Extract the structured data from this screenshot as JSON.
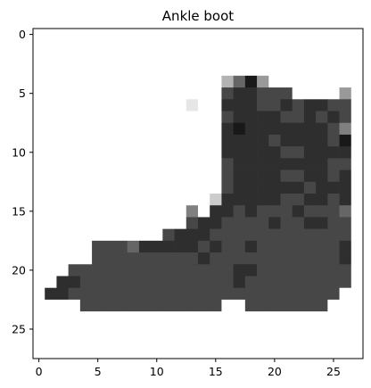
{
  "chart_data": {
    "type": "heatmap",
    "title": "Ankle boot",
    "xlabel": "",
    "ylabel": "",
    "colormap": "gray_r",
    "xlim": [
      -0.5,
      27.5
    ],
    "ylim": [
      27.5,
      -0.5
    ],
    "x_ticks": [
      0,
      5,
      10,
      15,
      20,
      25
    ],
    "y_ticks": [
      0,
      5,
      10,
      15,
      20,
      25
    ],
    "x_tick_labels": [
      "0",
      "5",
      "10",
      "15",
      "20",
      "25"
    ],
    "y_tick_labels": [
      "0",
      "5",
      "10",
      "15",
      "20",
      "25"
    ],
    "grid": false,
    "legend": "none",
    "pixel_rows": [
      "0000000000000000000000000000",
      "0000000000000000000000000000",
      "0000000000000000000000000000",
      "0000000000000000000000000000",
      "0000000000000000369400000000",
      "0000000000000000788777000040",
      "0000000000000100888778788770",
      "0000000000000000788887787870",
      "0000000000000000898888888750",
      "0000000000000000888878888790",
      "0000000000000000888887788880",
      "0000000000000000788888888770",
      "0000000000000000788887788780",
      "0000000000000000788888878880",
      "0000000000000002888887788780",
      "0000000000000508878777877760",
      "0000000000000788777787788770",
      "0000000000078887777777777770",
      "0000077768888878778777777780",
      "0000077777777787777777777780",
      "0007777777777777788777777770",
      "0088777777777777787777777770",
      "0887777777777777777777777700",
      "0000777777777777007777777000",
      "0000000000000000000000000000",
      "0000000000000000000000000000",
      "0000000000000000000000000000",
      "0000000000000000000000000000"
    ],
    "pixel_intensity_scale": [
      0.0,
      0.1,
      0.2,
      0.3,
      0.4,
      0.5,
      0.6,
      0.72,
      0.82,
      0.9
    ]
  }
}
